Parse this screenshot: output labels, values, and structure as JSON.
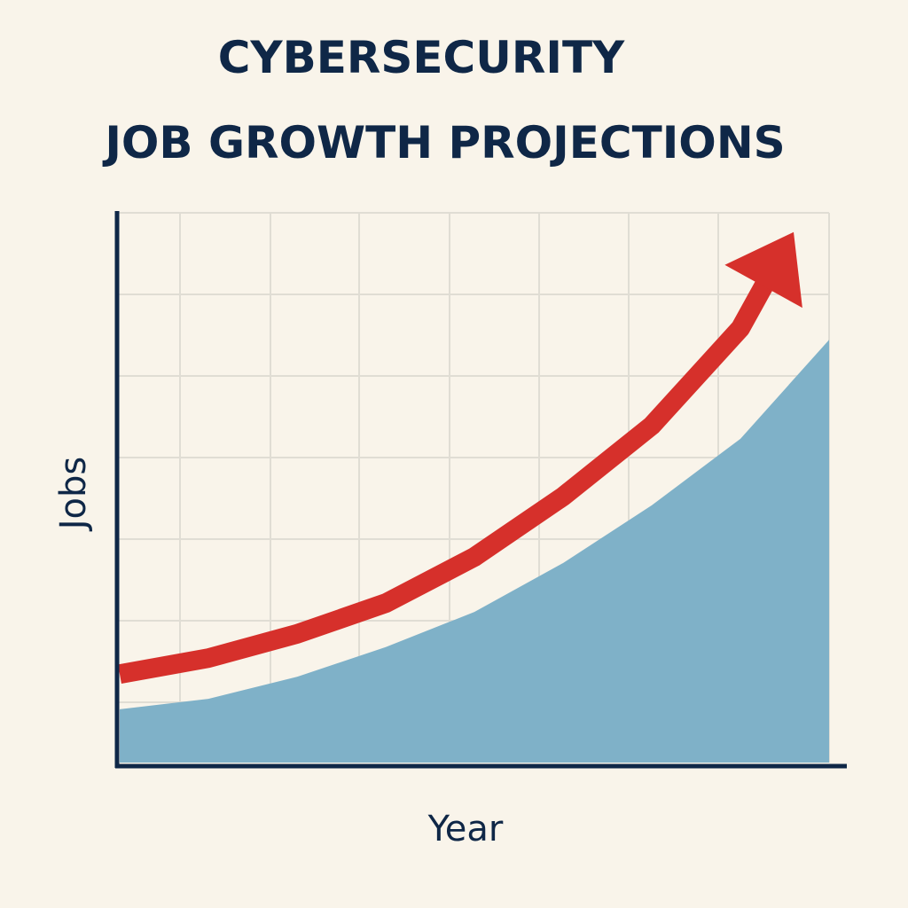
{
  "chart_data": {
    "type": "area",
    "title": [
      "CYBERSECURITY",
      "JOB GROWTH PROJECTIONS"
    ],
    "x_label": "Year",
    "y_label": "Jobs",
    "x": [
      0,
      1,
      2,
      3,
      4,
      5,
      6,
      7,
      8
    ],
    "xlim": [
      0,
      8
    ],
    "ylim": [
      0,
      100
    ],
    "series": [
      {
        "kind": "area",
        "color": "#7fb1c8",
        "x": [
          0,
          1,
          2,
          3,
          4,
          5,
          6,
          7,
          8
        ],
        "values": [
          9.7,
          11.6,
          15.6,
          21,
          27.4,
          36.3,
          46.8,
          58.9,
          76.9
        ]
      },
      {
        "kind": "arrow",
        "color": "#d6302b",
        "x": [
          0,
          1,
          2,
          3,
          4,
          5,
          6,
          7,
          7.6
        ],
        "values": [
          16.1,
          19,
          23.4,
          29,
          37.4,
          48.4,
          61.3,
          79,
          96.5
        ]
      }
    ]
  }
}
